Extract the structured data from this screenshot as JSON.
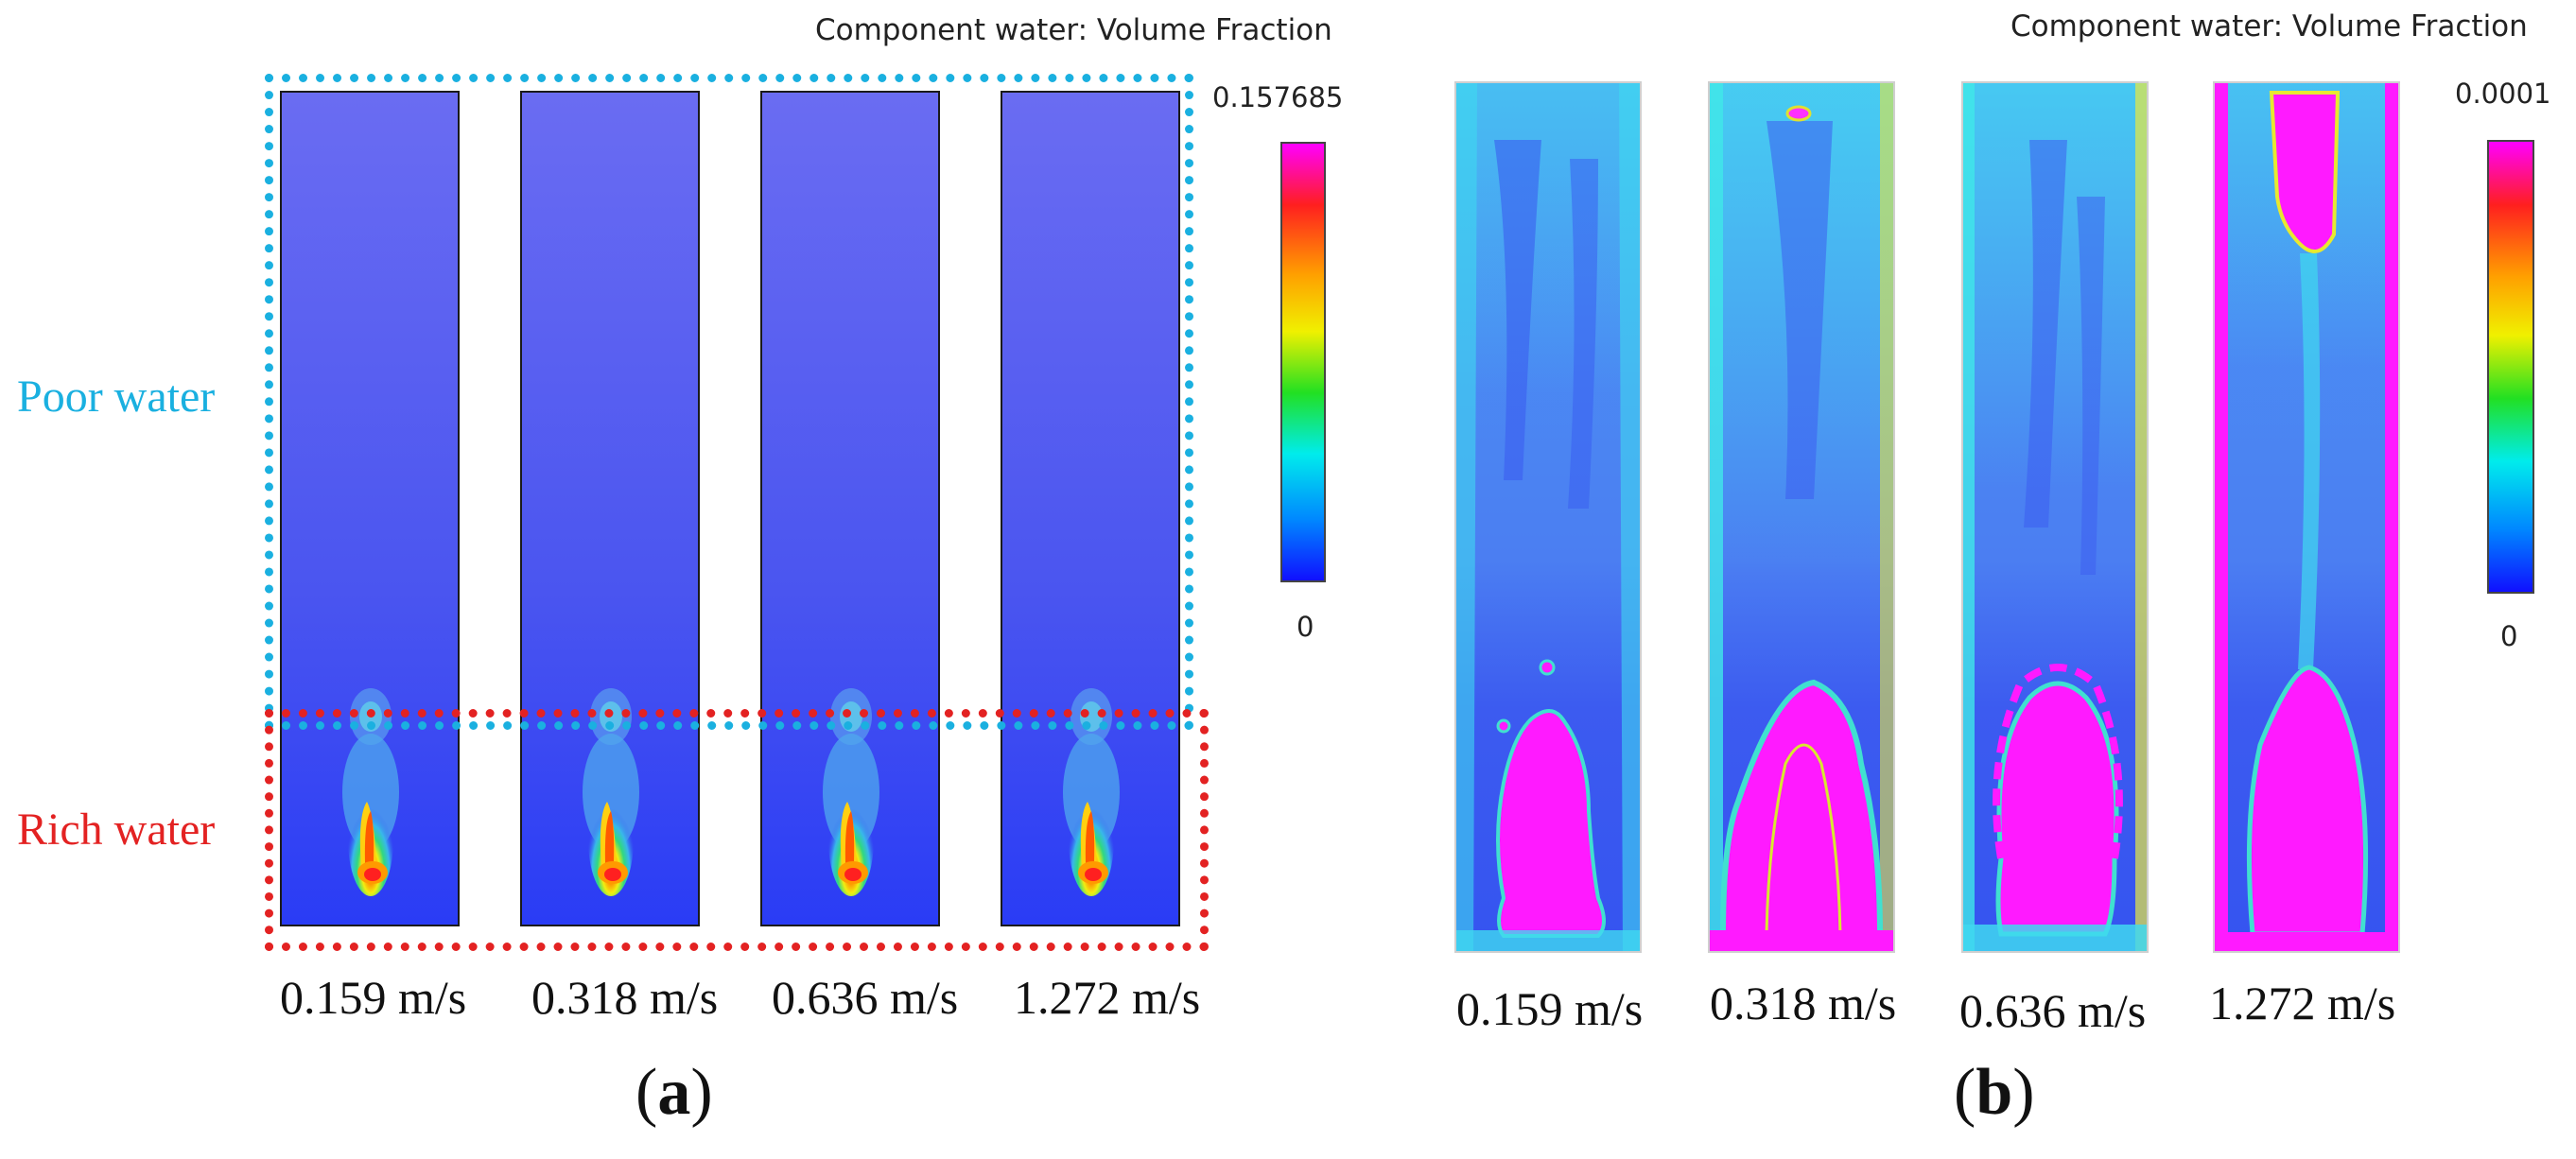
{
  "figure_a": {
    "label_open": "(",
    "label_letter": "a",
    "label_close": ")",
    "colorbar_title": "Component water: Volume Fraction",
    "colorbar_max": "0.157685",
    "colorbar_min": "0",
    "regions": {
      "poor": "Poor water",
      "rich": "Rich water"
    },
    "region_colors": {
      "poor": "#1ab0e0",
      "rich": "#e32222"
    },
    "velocities": [
      "0.159 m/s",
      "0.318 m/s",
      "0.636 m/s",
      "1.272 m/s"
    ]
  },
  "figure_b": {
    "label_open": "(",
    "label_letter": "b",
    "label_close": ")",
    "colorbar_title": "Component water: Volume Fraction",
    "colorbar_max": "0.0001",
    "colorbar_min": "0",
    "velocities": [
      "0.159 m/s",
      "0.318 m/s",
      "0.636 m/s",
      "1.272 m/s"
    ]
  },
  "colormap": [
    "#ff00ff",
    "#ff2020",
    "#ffa000",
    "#ffff00",
    "#30e030",
    "#00f0f0",
    "#0090ff",
    "#1010ff"
  ]
}
